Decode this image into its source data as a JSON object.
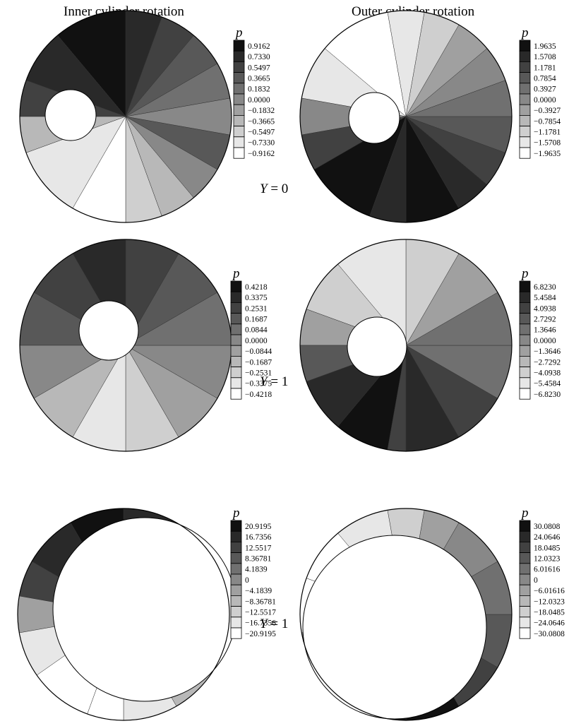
{
  "column_titles": [
    "Inner cylinder rotation",
    "Outer cylinder rotation"
  ],
  "row_labels": [
    {
      "var": "Y",
      "value": "0"
    },
    {
      "var": "Y",
      "value": "1"
    },
    {
      "var": "Y",
      "value": "1"
    }
  ],
  "panels": [
    {
      "id": "r1-inner",
      "colorbar": {
        "title": "p",
        "ticks": [
          "0.9162",
          "0.7330",
          "0.5497",
          "0.3665",
          "0.1832",
          "0.0000",
          "−0.1832",
          "−0.3665",
          "−0.5497",
          "−0.7330",
          "−0.9162"
        ]
      }
    },
    {
      "id": "r1-outer",
      "colorbar": {
        "title": "p",
        "ticks": [
          "1.9635",
          "1.5708",
          "1.1781",
          "0.7854",
          "0.3927",
          "0.0000",
          "−0.3927",
          "−0.7854",
          "−1.1781",
          "−1.5708",
          "−1.9635"
        ]
      }
    },
    {
      "id": "r2-inner",
      "colorbar": {
        "title": "p",
        "ticks": [
          "0.4218",
          "0.3375",
          "0.2531",
          "0.1687",
          "0.0844",
          "0.0000",
          "−0.0844",
          "−0.1687",
          "−0.2531",
          "−0.3375",
          "−0.4218"
        ]
      }
    },
    {
      "id": "r2-outer",
      "colorbar": {
        "title": "p",
        "ticks": [
          "6.8230",
          "5.4584",
          "4.0938",
          "2.7292",
          "1.3646",
          "0.0000",
          "−1.3646",
          "−2.7292",
          "−4.0938",
          "−5.4584",
          "−6.8230"
        ]
      }
    },
    {
      "id": "r3-inner",
      "colorbar": {
        "title": "p",
        "ticks": [
          "20.9195",
          "16.7356",
          "12.5517",
          "8.36781",
          "4.1839",
          "0",
          "−4.1839",
          "−8.36781",
          "−12.5517",
          "−16.7356",
          "−20.9195"
        ]
      }
    },
    {
      "id": "r3-outer",
      "colorbar": {
        "title": "p",
        "ticks": [
          "30.0808",
          "24.0646",
          "18.0485",
          "12.0323",
          "6.01616",
          "0",
          "−6.01616",
          "−12.0323",
          "−18.0485",
          "−24.0646",
          "−30.0808"
        ]
      }
    }
  ],
  "colors": {
    "cmap_dark": "#111111",
    "cmap_light": "#ffffff",
    "line": "#000000"
  }
}
